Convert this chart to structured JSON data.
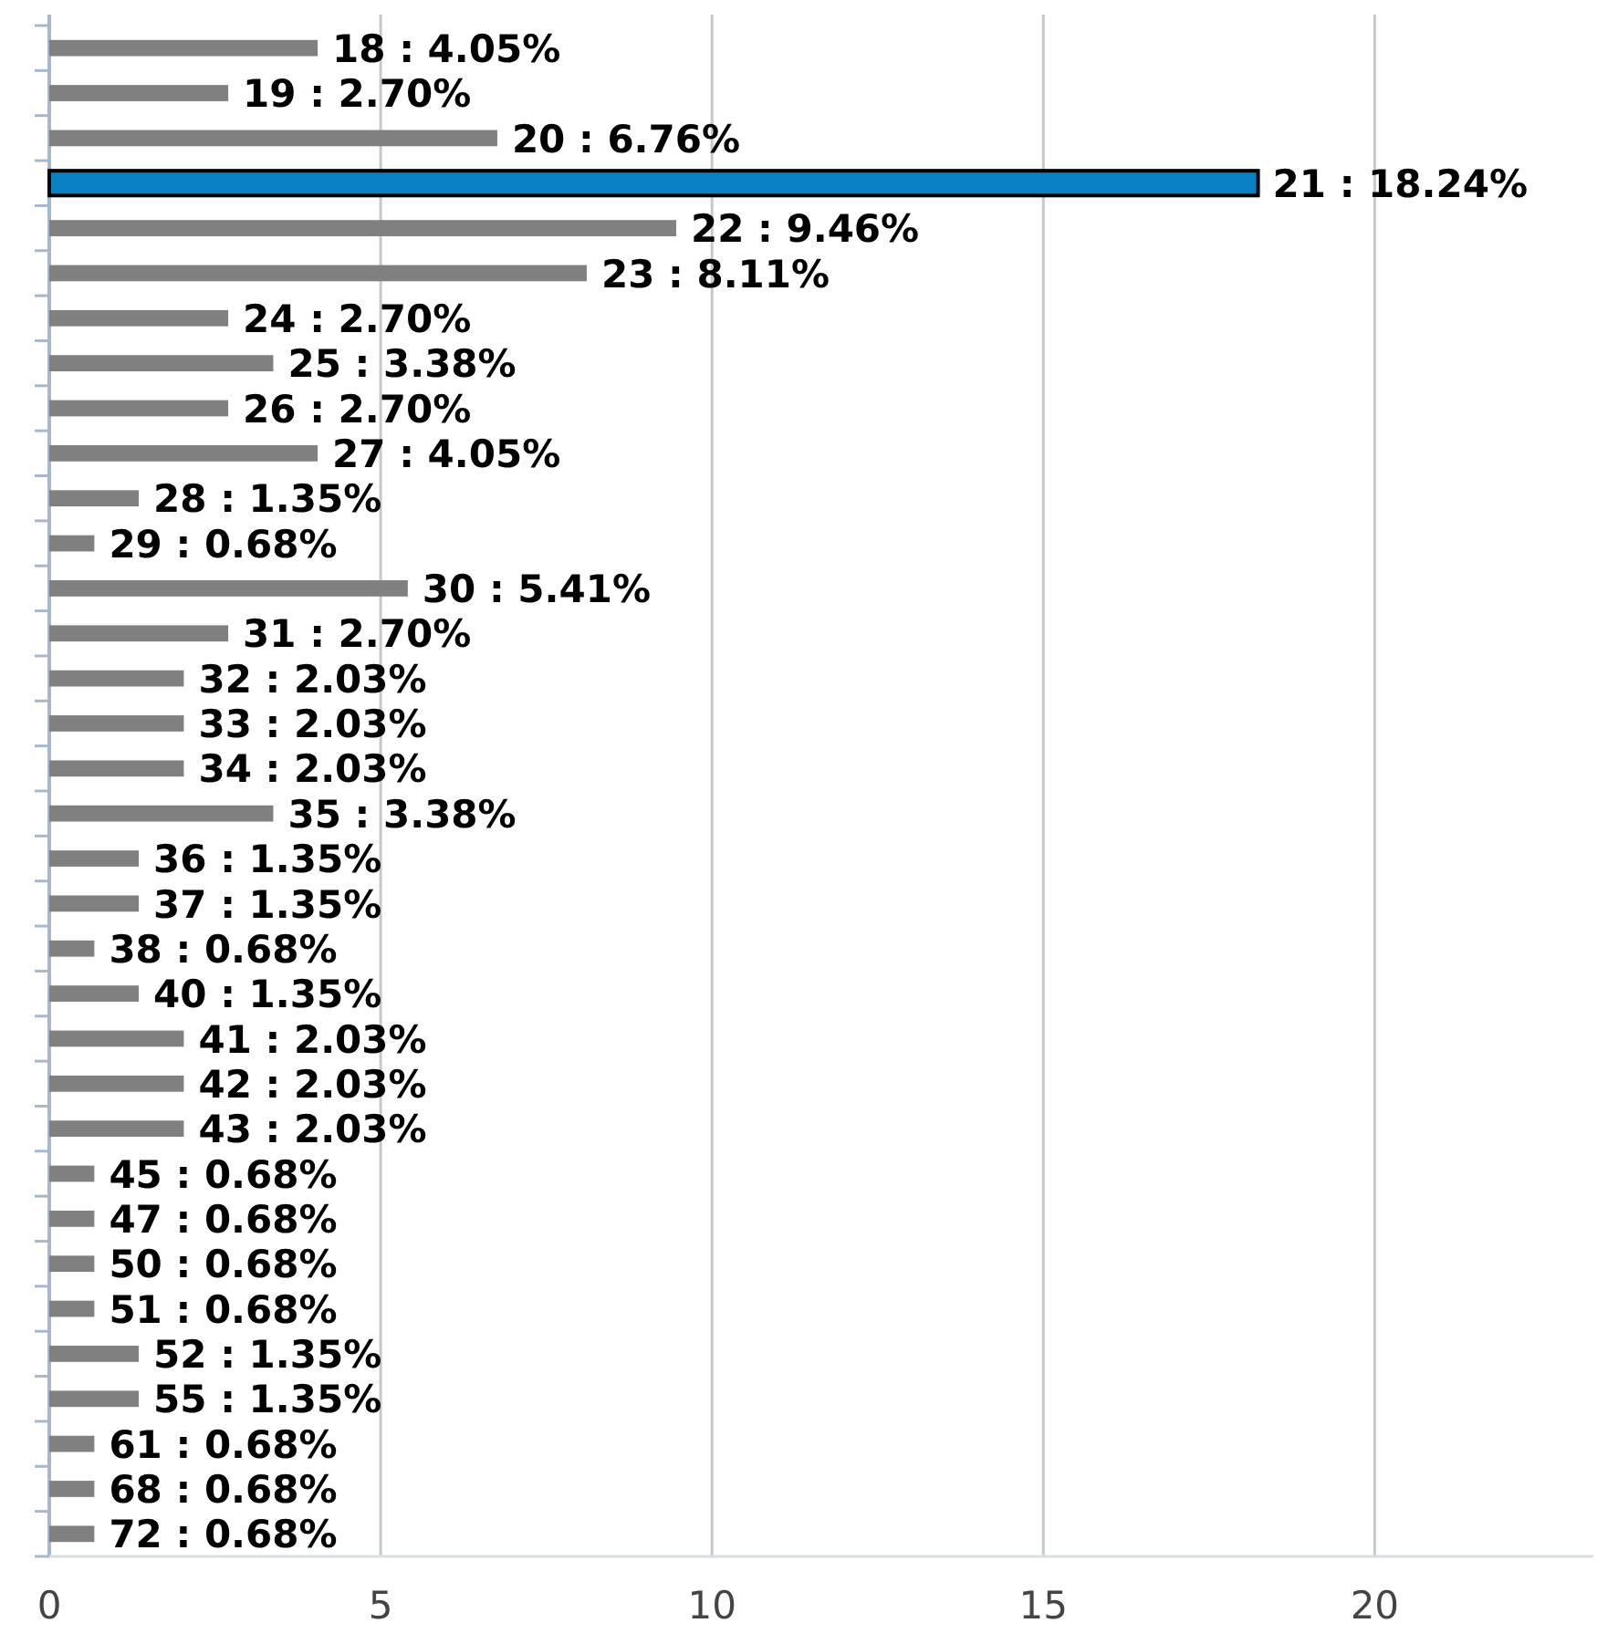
{
  "chart_data": {
    "type": "bar",
    "orientation": "horizontal",
    "categories": [
      "18",
      "19",
      "20",
      "21",
      "22",
      "23",
      "24",
      "25",
      "26",
      "27",
      "28",
      "29",
      "30",
      "31",
      "32",
      "33",
      "34",
      "35",
      "36",
      "37",
      "38",
      "40",
      "41",
      "42",
      "43",
      "45",
      "47",
      "50",
      "51",
      "52",
      "55",
      "61",
      "68",
      "72"
    ],
    "values": [
      4.05,
      2.7,
      6.76,
      18.24,
      9.46,
      8.11,
      2.7,
      3.38,
      2.7,
      4.05,
      1.35,
      0.68,
      5.41,
      2.7,
      2.03,
      2.03,
      2.03,
      3.38,
      1.35,
      1.35,
      0.68,
      1.35,
      2.03,
      2.03,
      2.03,
      0.68,
      0.68,
      0.68,
      0.68,
      1.35,
      1.35,
      0.68,
      0.68,
      0.68
    ],
    "value_labels": [
      ": 4.05%",
      ": 2.70%",
      ": 6.76%",
      ": 18.24%",
      ": 9.46%",
      ": 8.11%",
      ": 2.70%",
      ": 3.38%",
      ": 2.70%",
      ": 4.05%",
      ": 1.35%",
      ": 0.68%",
      ": 5.41%",
      ": 2.70%",
      ": 2.03%",
      ": 2.03%",
      ": 2.03%",
      ": 3.38%",
      ": 1.35%",
      ": 1.35%",
      ": 0.68%",
      ": 1.35%",
      ": 2.03%",
      ": 2.03%",
      ": 2.03%",
      ": 0.68%",
      ": 0.68%",
      ": 0.68%",
      ": 0.68%",
      ": 1.35%",
      ": 1.35%",
      ": 0.68%",
      ": 0.68%",
      ": 0.68%"
    ],
    "colors": [
      "#808080",
      "#808080",
      "#808080",
      "#0a7fc2",
      "#808080",
      "#808080",
      "#808080",
      "#808080",
      "#808080",
      "#808080",
      "#808080",
      "#808080",
      "#808080",
      "#808080",
      "#808080",
      "#808080",
      "#808080",
      "#808080",
      "#808080",
      "#808080",
      "#808080",
      "#808080",
      "#808080",
      "#808080",
      "#808080",
      "#808080",
      "#808080",
      "#808080",
      "#808080",
      "#808080",
      "#808080",
      "#808080",
      "#808080",
      "#808080"
    ],
    "xlim": [
      0,
      23.3
    ],
    "xticks": [
      0,
      5,
      10,
      15,
      20
    ],
    "grid": "x",
    "tick_labels": "x"
  }
}
